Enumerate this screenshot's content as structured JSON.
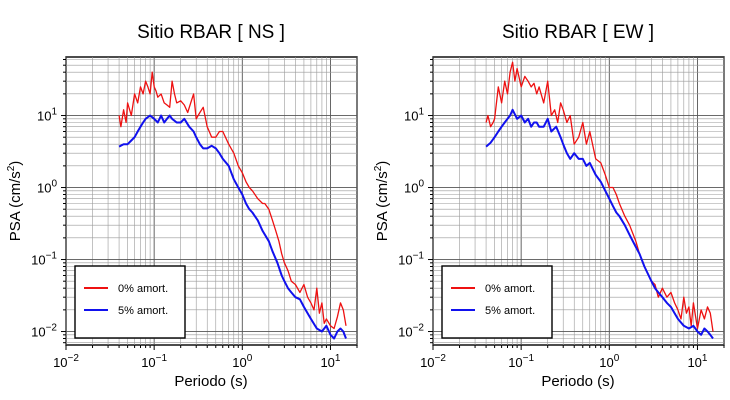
{
  "chart_data": [
    {
      "type": "line",
      "title": "Sitio RBAR [ NS ]",
      "xlabel": "Periodo (s)",
      "ylabel_base": "PSA (cm/s",
      "ylabel_sup": "2",
      "ylabel_close": ")",
      "xscale": "log",
      "yscale": "log",
      "xlim": [
        0.01,
        20
      ],
      "ylim": [
        0.0065,
        65
      ],
      "grid": true,
      "legend_position": "bottom-left",
      "xticks": [
        {
          "value": 0.01,
          "base": "10",
          "exp": "−2"
        },
        {
          "value": 0.1,
          "base": "10",
          "exp": "−1"
        },
        {
          "value": 1,
          "base": "10",
          "exp": "0"
        },
        {
          "value": 10,
          "base": "10",
          "exp": "1"
        }
      ],
      "yticks": [
        {
          "value": 0.01,
          "base": "10",
          "exp": "−2"
        },
        {
          "value": 0.1,
          "base": "10",
          "exp": "−1"
        },
        {
          "value": 1,
          "base": "10",
          "exp": "0"
        },
        {
          "value": 10,
          "base": "10",
          "exp": "1"
        }
      ],
      "series": [
        {
          "name": "0% amort.",
          "color": "#ee1111",
          "x": [
            0.04,
            0.042,
            0.045,
            0.048,
            0.05,
            0.055,
            0.06,
            0.065,
            0.07,
            0.075,
            0.08,
            0.085,
            0.09,
            0.095,
            0.1,
            0.105,
            0.11,
            0.12,
            0.13,
            0.14,
            0.15,
            0.16,
            0.17,
            0.18,
            0.2,
            0.22,
            0.24,
            0.26,
            0.28,
            0.3,
            0.33,
            0.36,
            0.4,
            0.45,
            0.5,
            0.55,
            0.6,
            0.7,
            0.8,
            0.9,
            1.0,
            1.1,
            1.2,
            1.3,
            1.5,
            1.7,
            1.8,
            2.0,
            2.2,
            2.4,
            2.6,
            2.8,
            3.0,
            3.3,
            3.6,
            4.0,
            4.5,
            5.0,
            5.5,
            6.0,
            6.5,
            7.0,
            7.5,
            8.0,
            8.5,
            9.0,
            10.0,
            11.0,
            12.0,
            13.0,
            14.0,
            15.0
          ],
          "y": [
            10,
            7,
            12,
            8,
            15,
            10,
            20,
            15,
            25,
            20,
            30,
            25,
            20,
            40,
            25,
            22,
            18,
            20,
            15,
            14,
            13,
            30,
            20,
            15,
            16,
            14,
            11,
            15,
            20,
            9,
            11,
            13,
            7,
            5,
            5,
            6,
            6,
            4,
            3,
            2,
            1.6,
            1.2,
            1.0,
            0.9,
            0.7,
            0.6,
            0.6,
            0.5,
            0.35,
            0.25,
            0.18,
            0.12,
            0.09,
            0.07,
            0.05,
            0.045,
            0.035,
            0.045,
            0.03,
            0.025,
            0.02,
            0.04,
            0.018,
            0.025,
            0.013,
            0.015,
            0.012,
            0.011,
            0.016,
            0.025,
            0.02,
            0.012
          ]
        },
        {
          "name": "5% amort.",
          "color": "#1111ee",
          "x": [
            0.04,
            0.045,
            0.05,
            0.055,
            0.06,
            0.065,
            0.07,
            0.075,
            0.08,
            0.09,
            0.1,
            0.11,
            0.12,
            0.13,
            0.14,
            0.15,
            0.16,
            0.18,
            0.2,
            0.22,
            0.25,
            0.28,
            0.3,
            0.33,
            0.36,
            0.4,
            0.45,
            0.5,
            0.55,
            0.6,
            0.7,
            0.8,
            0.9,
            1.0,
            1.1,
            1.2,
            1.3,
            1.5,
            1.7,
            2.0,
            2.2,
            2.5,
            2.8,
            3.0,
            3.3,
            3.6,
            4.0,
            4.5,
            5.0,
            5.5,
            6.0,
            7.0,
            8.0,
            9.0,
            10.0,
            11.0,
            12.0,
            13.0,
            14.0,
            15.0
          ],
          "y": [
            3.7,
            4,
            4,
            4.5,
            5,
            6,
            7,
            8,
            9,
            10,
            9,
            8,
            10,
            8,
            9,
            10,
            9,
            8,
            8,
            9,
            7,
            6,
            5,
            4,
            3.5,
            3.5,
            3.8,
            3.5,
            3,
            2.5,
            2,
            1.3,
            1.0,
            0.8,
            0.6,
            0.5,
            0.45,
            0.35,
            0.25,
            0.18,
            0.13,
            0.09,
            0.06,
            0.05,
            0.04,
            0.035,
            0.03,
            0.028,
            0.022,
            0.018,
            0.015,
            0.011,
            0.01,
            0.012,
            0.009,
            0.008,
            0.01,
            0.011,
            0.01,
            0.008
          ]
        }
      ]
    },
    {
      "type": "line",
      "title": "Sitio RBAR [ EW ]",
      "xlabel": "Periodo (s)",
      "ylabel_base": "PSA (cm/s",
      "ylabel_sup": "2",
      "ylabel_close": ")",
      "xscale": "log",
      "yscale": "log",
      "xlim": [
        0.01,
        20
      ],
      "ylim": [
        0.0065,
        65
      ],
      "grid": true,
      "legend_position": "bottom-left",
      "xticks": [
        {
          "value": 0.01,
          "base": "10",
          "exp": "−2"
        },
        {
          "value": 0.1,
          "base": "10",
          "exp": "−1"
        },
        {
          "value": 1,
          "base": "10",
          "exp": "0"
        },
        {
          "value": 10,
          "base": "10",
          "exp": "1"
        }
      ],
      "yticks": [
        {
          "value": 0.01,
          "base": "10",
          "exp": "−2"
        },
        {
          "value": 0.1,
          "base": "10",
          "exp": "−1"
        },
        {
          "value": 1,
          "base": "10",
          "exp": "0"
        },
        {
          "value": 10,
          "base": "10",
          "exp": "1"
        }
      ],
      "series": [
        {
          "name": "0% amort.",
          "color": "#ee1111",
          "x": [
            0.04,
            0.042,
            0.045,
            0.048,
            0.05,
            0.055,
            0.06,
            0.065,
            0.07,
            0.075,
            0.08,
            0.085,
            0.09,
            0.1,
            0.11,
            0.12,
            0.13,
            0.14,
            0.15,
            0.16,
            0.18,
            0.2,
            0.22,
            0.24,
            0.26,
            0.28,
            0.3,
            0.33,
            0.36,
            0.4,
            0.45,
            0.5,
            0.55,
            0.6,
            0.7,
            0.8,
            0.9,
            1.0,
            1.1,
            1.2,
            1.3,
            1.5,
            1.7,
            2.0,
            2.2,
            2.5,
            2.8,
            3.0,
            3.3,
            3.6,
            4.0,
            4.5,
            5.0,
            5.5,
            6.0,
            6.5,
            7.0,
            7.5,
            8.0,
            8.5,
            9.0,
            10.0,
            11.0,
            12.0,
            13.0,
            14.0,
            15.0
          ],
          "y": [
            8,
            10,
            7,
            8,
            9,
            25,
            15,
            30,
            20,
            40,
            55,
            30,
            45,
            25,
            35,
            30,
            25,
            28,
            20,
            25,
            15,
            30,
            10,
            12,
            8,
            15,
            12,
            8,
            10,
            4,
            5,
            8,
            4,
            6,
            2.5,
            2.2,
            1.5,
            1.0,
            1.0,
            0.8,
            0.6,
            0.4,
            0.3,
            0.18,
            0.12,
            0.08,
            0.06,
            0.05,
            0.045,
            0.03,
            0.04,
            0.03,
            0.035,
            0.025,
            0.02,
            0.015,
            0.03,
            0.018,
            0.022,
            0.012,
            0.025,
            0.011,
            0.02,
            0.015,
            0.022,
            0.018,
            0.01
          ]
        },
        {
          "name": "5% amort.",
          "color": "#1111ee",
          "x": [
            0.04,
            0.045,
            0.05,
            0.055,
            0.06,
            0.065,
            0.07,
            0.075,
            0.08,
            0.09,
            0.1,
            0.11,
            0.12,
            0.13,
            0.14,
            0.15,
            0.16,
            0.18,
            0.2,
            0.22,
            0.25,
            0.28,
            0.3,
            0.33,
            0.36,
            0.4,
            0.45,
            0.5,
            0.55,
            0.6,
            0.7,
            0.8,
            0.9,
            1.0,
            1.1,
            1.2,
            1.3,
            1.5,
            1.7,
            2.0,
            2.2,
            2.5,
            2.8,
            3.0,
            3.3,
            3.6,
            4.0,
            4.5,
            5.0,
            5.5,
            6.0,
            7.0,
            8.0,
            9.0,
            10.0,
            11.0,
            12.0,
            13.0,
            14.0,
            15.0
          ],
          "y": [
            3.7,
            4.2,
            5,
            6,
            7,
            8,
            9,
            10,
            12,
            9,
            10,
            8,
            9,
            7,
            8,
            8,
            7,
            7,
            9,
            6,
            7,
            5,
            4,
            3,
            2.5,
            3,
            2.5,
            2.5,
            2,
            2.2,
            1.5,
            1.2,
            0.9,
            0.7,
            0.55,
            0.45,
            0.4,
            0.3,
            0.22,
            0.15,
            0.12,
            0.08,
            0.06,
            0.05,
            0.04,
            0.035,
            0.03,
            0.025,
            0.022,
            0.018,
            0.015,
            0.012,
            0.011,
            0.012,
            0.01,
            0.009,
            0.011,
            0.01,
            0.009,
            0.008
          ]
        }
      ]
    }
  ]
}
